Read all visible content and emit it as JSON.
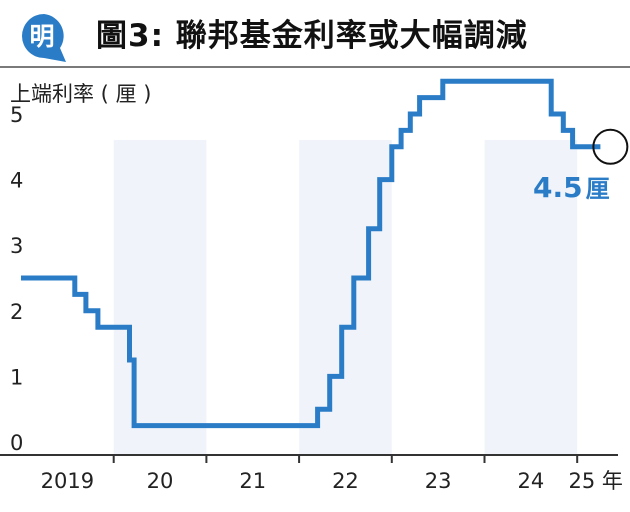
{
  "header": {
    "logo_char": "明",
    "title": "圖3: 聯邦基金利率或大幅調減"
  },
  "colors": {
    "line": "#2a7cc7",
    "shade": "#f0f4fa",
    "axis": "#333333",
    "title_rule": "#7a7a7a",
    "logo_blue": "#2a7cc7"
  },
  "chart_data": {
    "type": "line",
    "step": true,
    "title": "圖3: 聯邦基金利率或大幅調減",
    "ylabel": "上端利率 ( 厘 )",
    "xlabel": "",
    "xlim": [
      2019.0,
      2025.35
    ],
    "ylim": [
      0,
      5.6
    ],
    "y_ticks": [
      0,
      1,
      2,
      3,
      4,
      5
    ],
    "x_ticks": [
      {
        "label": "2019",
        "at": 2019.5
      },
      {
        "label": "20",
        "at": 2020.5
      },
      {
        "label": "21",
        "at": 2021.5
      },
      {
        "label": "22",
        "at": 2022.5
      },
      {
        "label": "23",
        "at": 2023.5
      },
      {
        "label": "24",
        "at": 2024.5
      },
      {
        "label": "25 年",
        "at": 2025.2
      }
    ],
    "year_boundaries": [
      2020,
      2021,
      2022,
      2023,
      2024,
      2025
    ],
    "shaded_years": [
      2020,
      2022,
      2024
    ],
    "grid": false,
    "series": [
      {
        "points": [
          [
            2019.0,
            2.5
          ],
          [
            2019.58,
            2.25
          ],
          [
            2019.7,
            2.0
          ],
          [
            2019.83,
            1.75
          ],
          [
            2020.17,
            1.25
          ],
          [
            2020.22,
            0.25
          ],
          [
            2022.2,
            0.5
          ],
          [
            2022.33,
            1.0
          ],
          [
            2022.46,
            1.75
          ],
          [
            2022.59,
            2.5
          ],
          [
            2022.75,
            3.25
          ],
          [
            2022.87,
            4.0
          ],
          [
            2023.0,
            4.5
          ],
          [
            2023.1,
            4.75
          ],
          [
            2023.2,
            5.0
          ],
          [
            2023.3,
            5.25
          ],
          [
            2023.55,
            5.5
          ],
          [
            2024.72,
            5.0
          ],
          [
            2024.85,
            4.75
          ],
          [
            2024.95,
            4.5
          ],
          [
            2025.25,
            4.5
          ]
        ]
      }
    ],
    "annotation": {
      "text": "4.5",
      "unit": "厘",
      "x": 2025.25,
      "y": 4.5
    }
  }
}
